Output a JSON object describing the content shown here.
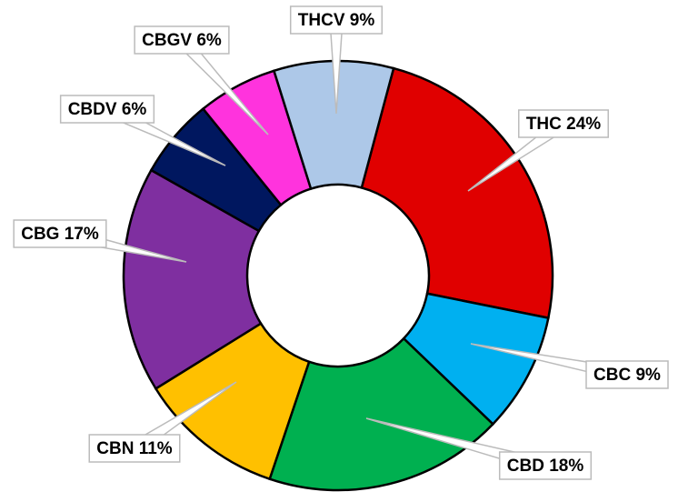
{
  "chart_data": {
    "type": "donut",
    "categories": [
      "THC",
      "CBC",
      "CBD",
      "CBN",
      "CBG",
      "CBDV",
      "CBGV",
      "THCV"
    ],
    "values": [
      24,
      9,
      18,
      11,
      17,
      6,
      6,
      9
    ],
    "value_labels": [
      "THC 24%",
      "CBC 9%",
      "CBD 18%",
      "CBN 11%",
      "CBG 17%",
      "CBDV 6%",
      "CBGV 6%",
      "THCV 9%"
    ],
    "colors": [
      "#e00000",
      "#00b0f0",
      "#00b050",
      "#ffc000",
      "#7f2fa0",
      "#00175f",
      "#ff33dd",
      "#adc8e8"
    ]
  }
}
